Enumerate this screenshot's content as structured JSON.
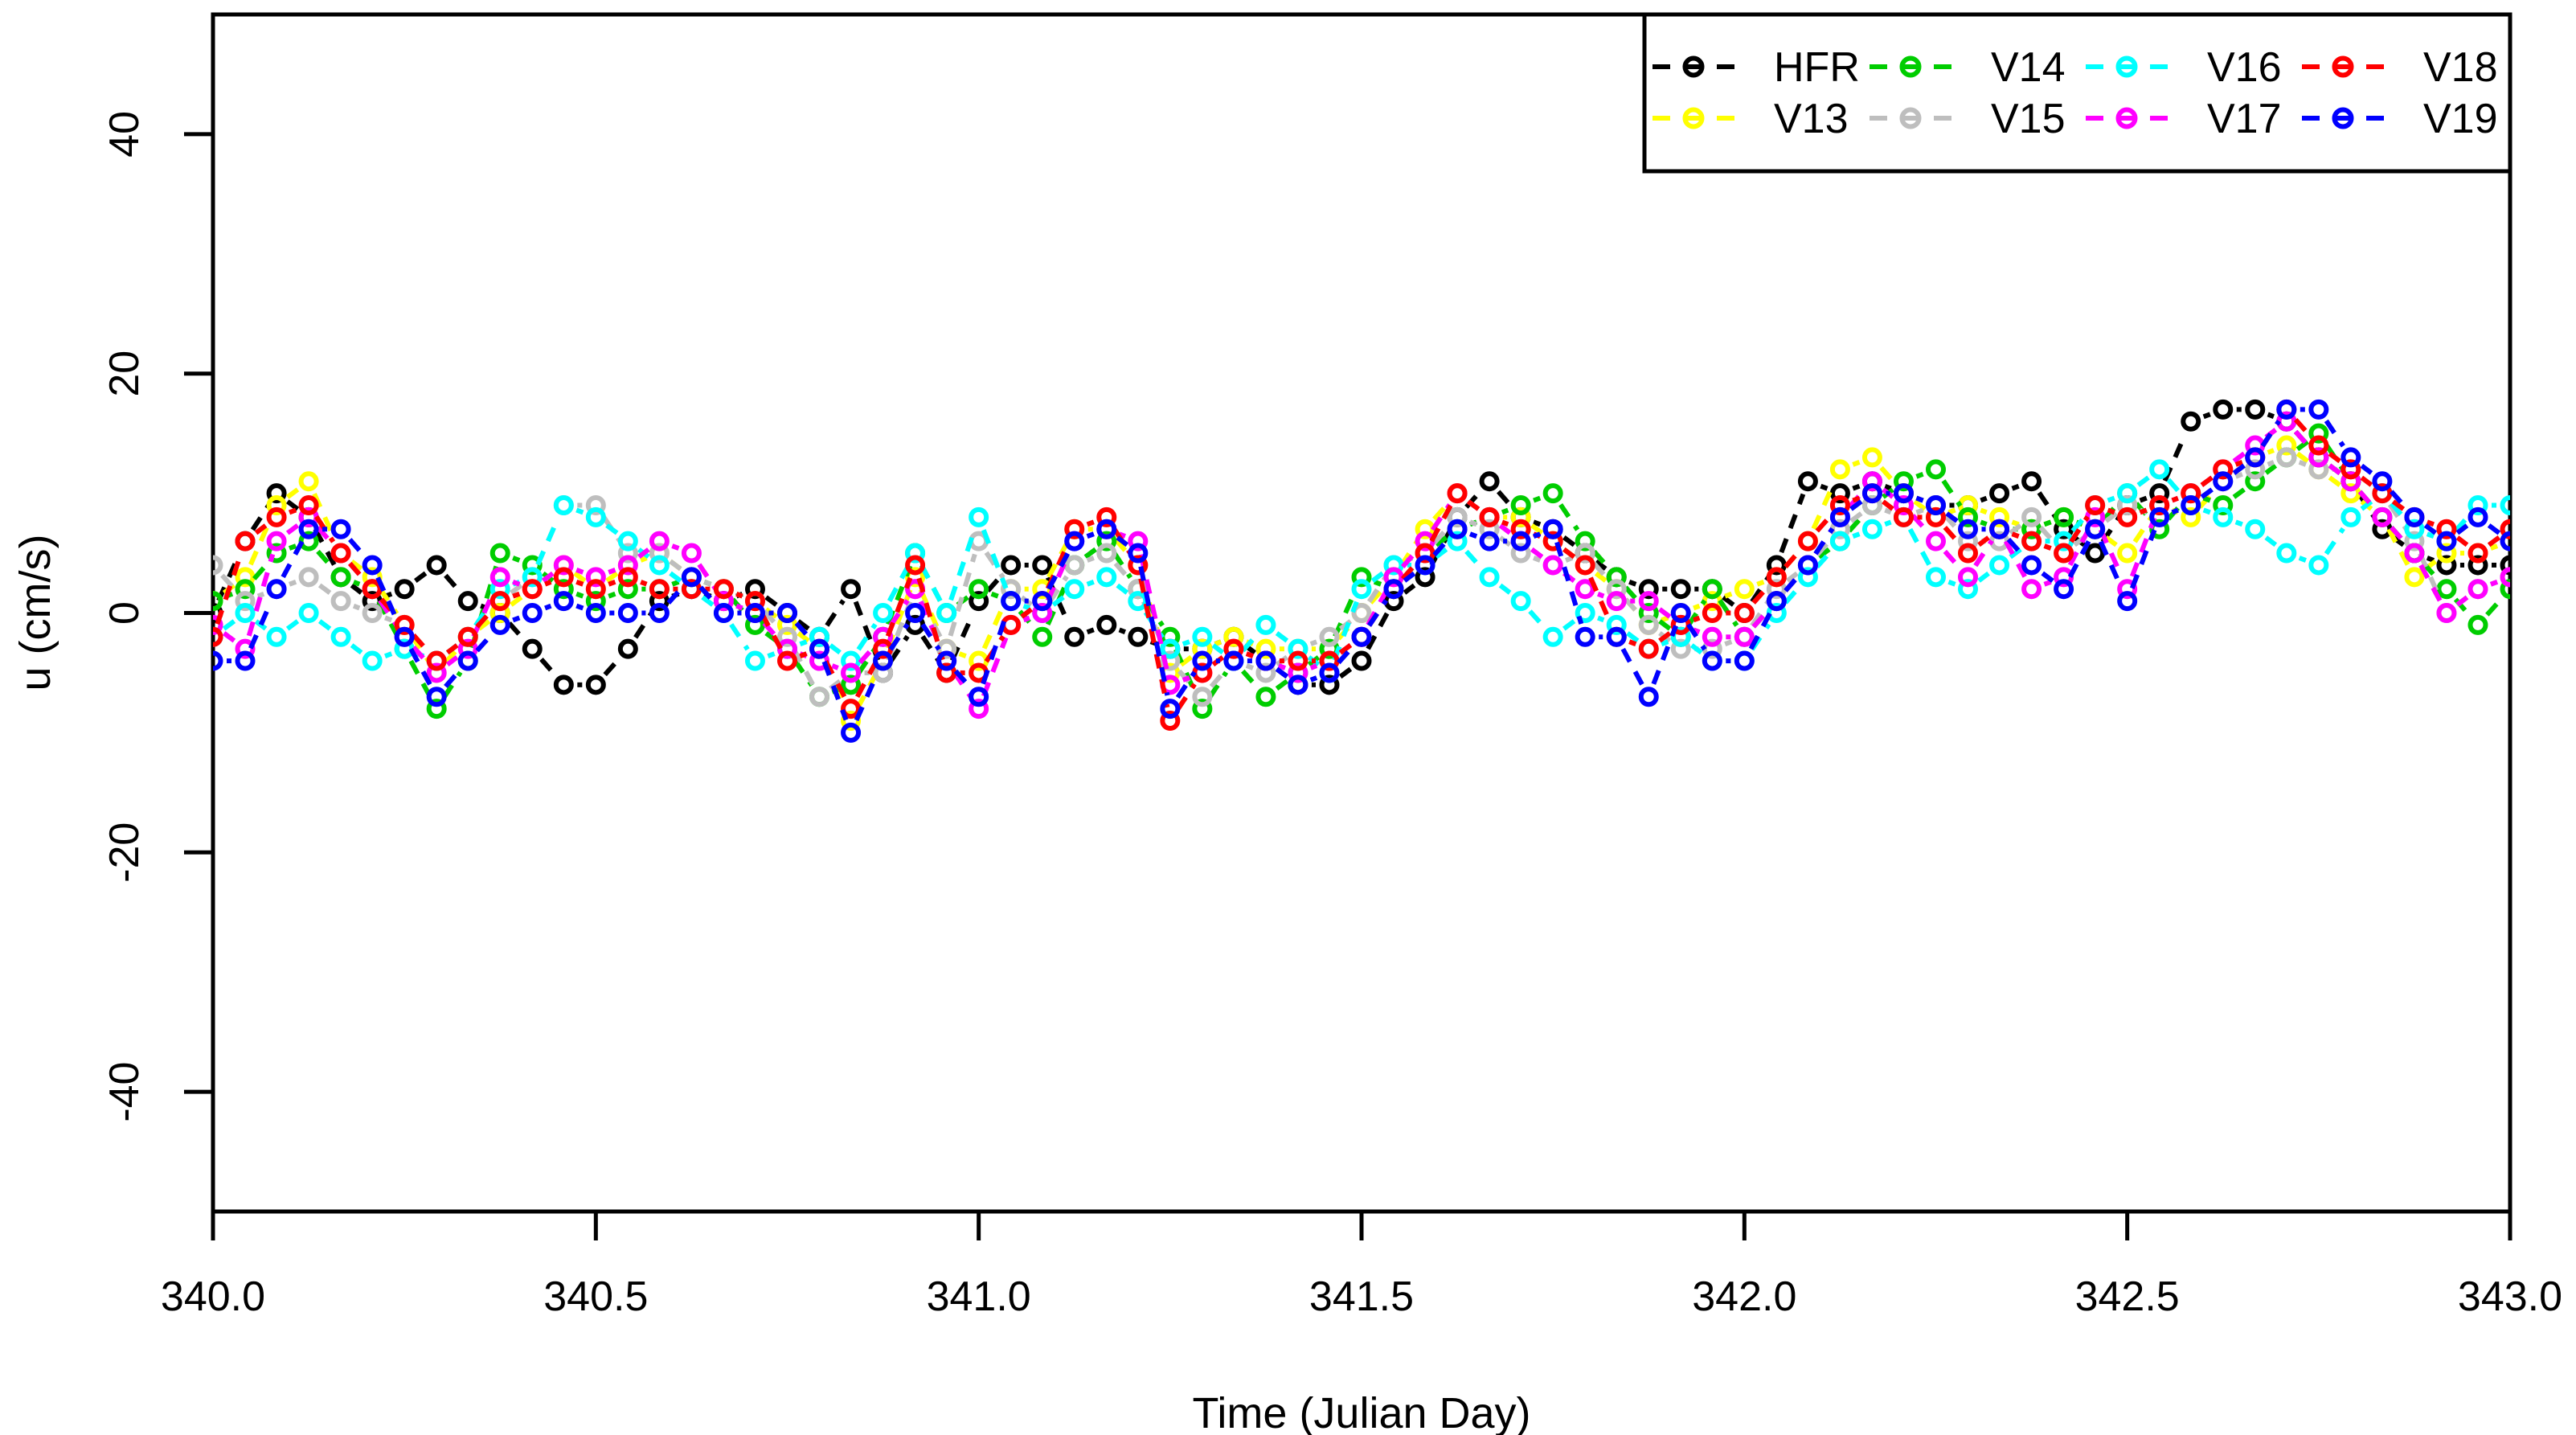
{
  "figure": {
    "background": "#FFFFFF",
    "axis_color": "#000000",
    "style": "R base graphics, dashed lines with open circle markers (type b)"
  },
  "chart_data": {
    "type": "line",
    "title": "",
    "xlabel": "Time (Julian Day)",
    "ylabel": "u (cm/s)",
    "xlim": [
      340.0,
      343.0
    ],
    "ylim": [
      -50,
      50
    ],
    "x_ticks": [
      340.0,
      340.5,
      341.0,
      341.5,
      342.0,
      342.5,
      343.0
    ],
    "x_tick_labels": [
      "340.0",
      "340.5",
      "341.0",
      "341.5",
      "342.0",
      "342.5",
      "343.0"
    ],
    "y_ticks": [
      -40,
      -20,
      0,
      20,
      40
    ],
    "y_tick_labels": [
      "-40",
      "-20",
      "0",
      "20",
      "40"
    ],
    "grid": false,
    "legend_position": "top-right",
    "marker": "open-circle",
    "line_style": "dashed",
    "sample_interval_days": 0.0417,
    "x": [
      340.0,
      340.042,
      340.083,
      340.125,
      340.167,
      340.208,
      340.25,
      340.292,
      340.333,
      340.375,
      340.417,
      340.458,
      340.5,
      340.542,
      340.583,
      340.625,
      340.667,
      340.708,
      340.75,
      340.792,
      340.833,
      340.875,
      340.917,
      340.958,
      341.0,
      341.042,
      341.083,
      341.125,
      341.167,
      341.208,
      341.25,
      341.292,
      341.333,
      341.375,
      341.417,
      341.458,
      341.5,
      341.542,
      341.583,
      341.625,
      341.667,
      341.708,
      341.75,
      341.792,
      341.833,
      341.875,
      341.917,
      341.958,
      342.0,
      342.042,
      342.083,
      342.125,
      342.167,
      342.208,
      342.25,
      342.292,
      342.333,
      342.375,
      342.417,
      342.458,
      342.5,
      342.542,
      342.583,
      342.625,
      342.667,
      342.708,
      342.75,
      342.792,
      342.833,
      342.875,
      342.917,
      342.958,
      343.0
    ],
    "series": [
      {
        "name": "HFR",
        "color": "#000000",
        "values": [
          0,
          6,
          10,
          8,
          3,
          1,
          2,
          4,
          1,
          0,
          -3,
          -6,
          -6,
          -3,
          1,
          2,
          1,
          2,
          0,
          -2,
          2,
          -5,
          -1,
          -5,
          1,
          4,
          4,
          -2,
          -1,
          -2,
          -3,
          -3,
          -2,
          -4,
          -6,
          -6,
          -4,
          1,
          3,
          8,
          11,
          8,
          7,
          5,
          3,
          2,
          2,
          2,
          0,
          4,
          11,
          10,
          11,
          10,
          9,
          9,
          10,
          11,
          7,
          5,
          9,
          10,
          16,
          17,
          17,
          16,
          13,
          11,
          7,
          5,
          4,
          4,
          4
        ]
      },
      {
        "name": "V13",
        "color": "#FFFF00",
        "values": [
          1,
          3,
          9,
          11,
          5,
          3,
          -1,
          -5,
          -2,
          0,
          2,
          4,
          2,
          4,
          5,
          3,
          2,
          1,
          -1,
          -3,
          -9,
          -4,
          3,
          -3,
          -4,
          2,
          2,
          7,
          7,
          4,
          -5,
          -3,
          -2,
          -3,
          -3,
          -3,
          0,
          3,
          7,
          10,
          8,
          8,
          6,
          4,
          2,
          -1,
          0,
          1,
          2,
          3,
          6,
          12,
          13,
          10,
          8,
          9,
          8,
          7,
          8,
          7,
          5,
          9,
          8,
          11,
          13,
          14,
          12,
          10,
          8,
          3,
          5,
          5,
          6
        ]
      },
      {
        "name": "V14",
        "color": "#00CD00",
        "values": [
          1,
          2,
          5,
          6,
          3,
          2,
          -3,
          -8,
          -4,
          5,
          4,
          2,
          1,
          2,
          2,
          3,
          2,
          -1,
          -3,
          -7,
          -6,
          -2,
          5,
          0,
          2,
          1,
          -2,
          4,
          6,
          2,
          -2,
          -8,
          -4,
          -7,
          -5,
          -3,
          3,
          2,
          5,
          7,
          8,
          9,
          10,
          6,
          3,
          0,
          -2,
          2,
          -2,
          1,
          4,
          6,
          9,
          11,
          12,
          8,
          7,
          7,
          8,
          7,
          10,
          7,
          10,
          9,
          11,
          13,
          15,
          11,
          8,
          5,
          2,
          -1,
          2
        ]
      },
      {
        "name": "V15",
        "color": "#BEBEBE",
        "values": [
          4,
          1,
          2,
          3,
          1,
          0,
          -1,
          -4,
          -2,
          1,
          3,
          9,
          9,
          5,
          5,
          3,
          2,
          1,
          -2,
          -7,
          -5,
          -5,
          2,
          -3,
          6,
          2,
          0,
          4,
          5,
          2,
          -4,
          -7,
          -4,
          -5,
          -3,
          -2,
          0,
          4,
          5,
          8,
          7,
          5,
          4,
          5,
          2,
          -1,
          -3,
          -3,
          -2,
          2,
          4,
          7,
          9,
          8,
          9,
          6,
          6,
          8,
          5,
          7,
          9,
          8,
          9,
          11,
          12,
          13,
          12,
          12,
          10,
          6,
          0,
          2,
          3
        ]
      },
      {
        "name": "V16",
        "color": "#00FFFF",
        "values": [
          -2,
          0,
          -2,
          0,
          -2,
          -4,
          -3,
          -4,
          -2,
          2,
          3,
          9,
          8,
          6,
          4,
          2,
          0,
          -4,
          -3,
          -2,
          -4,
          0,
          5,
          0,
          8,
          1,
          0,
          2,
          3,
          1,
          -3,
          -2,
          -4,
          -1,
          -3,
          -5,
          2,
          4,
          4,
          6,
          3,
          1,
          -2,
          0,
          -1,
          -3,
          -2,
          -4,
          -4,
          0,
          3,
          6,
          7,
          8,
          3,
          2,
          4,
          6,
          6,
          9,
          10,
          12,
          9,
          8,
          7,
          5,
          4,
          8,
          10,
          7,
          6,
          9,
          9
        ]
      },
      {
        "name": "V17",
        "color": "#FF00FF",
        "values": [
          -1,
          -3,
          6,
          8,
          5,
          2,
          -2,
          -5,
          -3,
          3,
          2,
          4,
          3,
          4,
          6,
          5,
          1,
          0,
          -3,
          -4,
          -5,
          -2,
          2,
          -4,
          -8,
          -1,
          0,
          6,
          7,
          6,
          -6,
          -5,
          -3,
          -4,
          -5,
          -4,
          -2,
          3,
          6,
          10,
          8,
          6,
          4,
          2,
          1,
          1,
          -1,
          -2,
          -2,
          1,
          4,
          8,
          11,
          9,
          6,
          3,
          7,
          2,
          3,
          8,
          2,
          9,
          10,
          12,
          14,
          16,
          13,
          11,
          8,
          5,
          0,
          2,
          3
        ]
      },
      {
        "name": "V18",
        "color": "#FF0000",
        "values": [
          -2,
          6,
          8,
          9,
          5,
          2,
          -1,
          -4,
          -2,
          1,
          2,
          3,
          2,
          3,
          2,
          2,
          2,
          1,
          -4,
          -3,
          -8,
          -3,
          4,
          -5,
          -5,
          -1,
          1,
          7,
          8,
          4,
          -9,
          -5,
          -3,
          -4,
          -4,
          -4,
          -2,
          2,
          5,
          10,
          8,
          7,
          6,
          4,
          -2,
          -3,
          -1,
          0,
          0,
          3,
          6,
          9,
          10,
          8,
          8,
          5,
          7,
          6,
          5,
          9,
          8,
          9,
          10,
          12,
          13,
          17,
          14,
          12,
          10,
          8,
          7,
          5,
          7
        ]
      },
      {
        "name": "V19",
        "color": "#0000FF",
        "values": [
          -4,
          -4,
          2,
          7,
          7,
          4,
          -2,
          -7,
          -4,
          -1,
          0,
          1,
          0,
          0,
          0,
          3,
          0,
          0,
          0,
          -3,
          -10,
          -4,
          0,
          -4,
          -7,
          1,
          1,
          6,
          7,
          5,
          -8,
          -4,
          -4,
          -4,
          -6,
          -5,
          -2,
          2,
          4,
          7,
          6,
          6,
          7,
          -2,
          -2,
          -7,
          0,
          -4,
          -4,
          1,
          4,
          8,
          10,
          10,
          9,
          7,
          7,
          4,
          2,
          7,
          1,
          8,
          9,
          11,
          13,
          17,
          17,
          13,
          11,
          8,
          6,
          8,
          6
        ]
      }
    ]
  },
  "legend": {
    "rows": 2,
    "columns": 4,
    "row1": [
      "HFR",
      "V14",
      "V16",
      "V18"
    ],
    "row2": [
      "V13",
      "V15",
      "V17",
      "V19"
    ],
    "entries": [
      {
        "label": "HFR",
        "color": "#000000"
      },
      {
        "label": "V13",
        "color": "#FFFF00"
      },
      {
        "label": "V14",
        "color": "#00CD00"
      },
      {
        "label": "V15",
        "color": "#BEBEBE"
      },
      {
        "label": "V16",
        "color": "#00FFFF"
      },
      {
        "label": "V17",
        "color": "#FF00FF"
      },
      {
        "label": "V18",
        "color": "#FF0000"
      },
      {
        "label": "V19",
        "color": "#0000FF"
      }
    ]
  }
}
